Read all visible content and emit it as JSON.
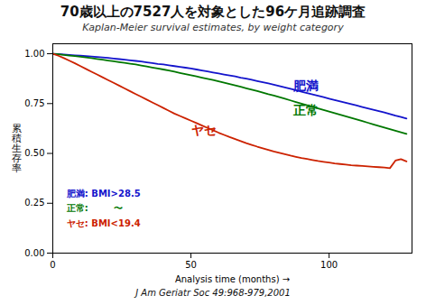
{
  "chart_data": {
    "type": "line",
    "title": "70歳以上の7527人を対象とした96ケ月追跡調査",
    "subtitle": "Kaplan-Meier survival estimates, by weight category",
    "caption": "J Am Geriatr Soc 49:968-979,2001",
    "x_label": "Analysis time (months)",
    "y_label": "累\n積\n生\n存\n率",
    "xlim": [
      0,
      130
    ],
    "ylim": [
      0.0,
      1.05
    ],
    "xticks": [
      0,
      50,
      100
    ],
    "yticks": [
      {
        "value": 0,
        "label": "0.00"
      },
      0.25,
      {
        "value": 0.5,
        "label": "0.50"
      },
      0.75,
      {
        "value": 1,
        "label": "1.00"
      }
    ],
    "x": [
      0,
      2,
      4,
      6,
      8,
      10,
      12,
      14,
      16,
      18,
      20,
      22,
      24,
      26,
      28,
      30,
      32,
      34,
      36,
      38,
      40,
      42,
      44,
      46,
      48,
      50,
      52,
      54,
      56,
      58,
      60,
      62,
      64,
      66,
      68,
      70,
      72,
      74,
      76,
      78,
      80,
      82,
      84,
      86,
      88,
      90,
      92,
      94,
      96,
      98,
      100,
      102,
      104,
      106,
      108,
      110,
      112,
      114,
      116,
      118,
      120,
      122,
      124,
      126,
      128
    ],
    "series": [
      {
        "name": "肥満",
        "color": "#1414CC",
        "values": [
          1.0,
          0.998,
          0.996,
          0.994,
          0.992,
          0.99,
          0.988,
          0.986,
          0.984,
          0.982,
          0.979,
          0.976,
          0.973,
          0.97,
          0.967,
          0.964,
          0.961,
          0.957,
          0.953,
          0.949,
          0.946,
          0.942,
          0.938,
          0.934,
          0.93,
          0.926,
          0.921,
          0.916,
          0.911,
          0.906,
          0.901,
          0.896,
          0.891,
          0.886,
          0.88,
          0.875,
          0.869,
          0.863,
          0.857,
          0.851,
          0.845,
          0.838,
          0.831,
          0.824,
          0.817,
          0.81,
          0.803,
          0.796,
          0.789,
          0.782,
          0.775,
          0.768,
          0.761,
          0.754,
          0.747,
          0.74,
          0.733,
          0.726,
          0.719,
          0.712,
          0.705,
          0.698,
          0.69,
          0.683,
          0.675
        ]
      },
      {
        "name": "正常",
        "color": "#007700",
        "values": [
          1.0,
          0.997,
          0.994,
          0.991,
          0.988,
          0.985,
          0.982,
          0.978,
          0.974,
          0.97,
          0.966,
          0.962,
          0.958,
          0.954,
          0.95,
          0.946,
          0.941,
          0.936,
          0.931,
          0.926,
          0.921,
          0.916,
          0.91,
          0.904,
          0.898,
          0.892,
          0.886,
          0.88,
          0.874,
          0.868,
          0.862,
          0.855,
          0.848,
          0.841,
          0.834,
          0.827,
          0.82,
          0.813,
          0.805,
          0.797,
          0.79,
          0.782,
          0.774,
          0.766,
          0.758,
          0.75,
          0.742,
          0.734,
          0.726,
          0.718,
          0.71,
          0.702,
          0.694,
          0.686,
          0.678,
          0.67,
          0.662,
          0.654,
          0.646,
          0.638,
          0.63,
          0.622,
          0.614,
          0.606,
          0.598
        ]
      },
      {
        "name": "ヤセ",
        "color": "#CC2200",
        "values": [
          1.0,
          0.99,
          0.978,
          0.965,
          0.952,
          0.938,
          0.924,
          0.91,
          0.896,
          0.882,
          0.868,
          0.854,
          0.84,
          0.826,
          0.812,
          0.798,
          0.784,
          0.77,
          0.756,
          0.742,
          0.728,
          0.714,
          0.7,
          0.688,
          0.676,
          0.664,
          0.652,
          0.64,
          0.628,
          0.616,
          0.604,
          0.593,
          0.582,
          0.572,
          0.562,
          0.552,
          0.543,
          0.534,
          0.526,
          0.518,
          0.51,
          0.503,
          0.496,
          0.489,
          0.483,
          0.477,
          0.472,
          0.467,
          0.462,
          0.458,
          0.454,
          0.45,
          0.447,
          0.444,
          0.441,
          0.439,
          0.437,
          0.435,
          0.433,
          0.431,
          0.429,
          0.426,
          0.464,
          0.471,
          0.46
        ]
      }
    ],
    "annotations": [
      {
        "text": "肥満",
        "x": 87,
        "y": 0.815,
        "color": "#1414CC"
      },
      {
        "text": "正常",
        "x": 87,
        "y": 0.695,
        "color": "#007700"
      },
      {
        "text": "ヤセ",
        "x": 50,
        "y": 0.595,
        "color": "#CC2200"
      },
      {
        "text": "肥満: BMI>28.5",
        "x": 5,
        "y": 0.285,
        "color": "#1414CC"
      },
      {
        "text": "正常:        〜",
        "x": 5,
        "y": 0.21,
        "color": "#007700"
      },
      {
        "text": "ヤセ: BMI<19.4",
        "x": 5,
        "y": 0.135,
        "color": "#CC2200"
      }
    ]
  }
}
